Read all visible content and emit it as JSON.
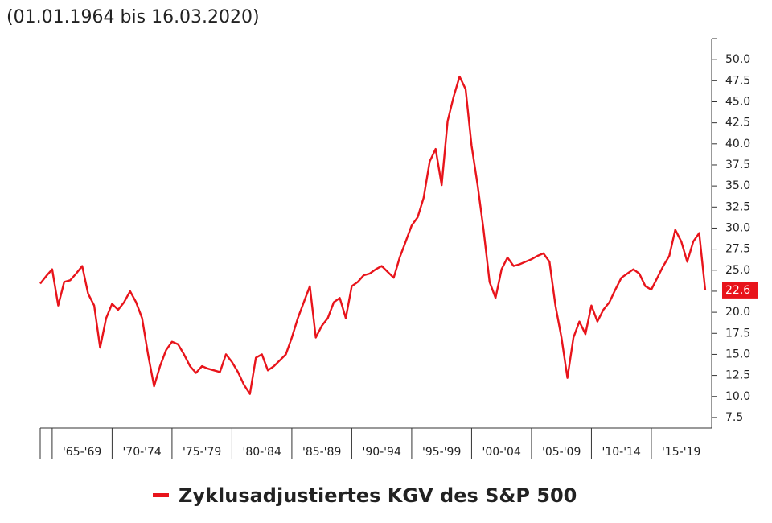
{
  "chart_data": {
    "type": "line",
    "subtitle": "(01.01.1964 bis 16.03.2020)",
    "x_labels": [
      "'65-'69",
      "'70-'74",
      "'75-'79",
      "'80-'84",
      "'85-'89",
      "'90-'94",
      "'95-'99",
      "'00-'04",
      "'05-'09",
      "'10-'14",
      "'15-'19"
    ],
    "series": [
      {
        "name": "Zyklusadjustiertes KGV des S&P 500",
        "color": "#e8141b",
        "values": [
          23.4,
          24.3,
          25.1,
          20.8,
          23.6,
          23.8,
          24.6,
          25.5,
          22.2,
          20.8,
          15.8,
          19.3,
          21,
          20.3,
          21.2,
          22.5,
          21.2,
          19.3,
          15,
          11.2,
          13.6,
          15.5,
          16.5,
          16.2,
          15,
          13.6,
          12.8,
          13.6,
          13.3,
          13.1,
          12.9,
          15,
          14.1,
          12.9,
          11.4,
          10.3,
          14.6,
          15,
          13.1,
          13.6,
          14.3,
          15,
          17,
          19.3,
          21.2,
          23.1,
          17,
          18.4,
          19.3,
          21.2,
          21.7,
          19.3,
          23.1,
          23.6,
          24.4,
          24.6,
          25.1,
          25.5,
          24.8,
          24.1,
          26.5,
          28.4,
          30.3,
          31.3,
          33.6,
          37.9,
          39.4,
          35.1,
          42.7,
          45.6,
          48,
          46.5,
          39.8,
          35.1,
          29.8,
          23.6,
          21.7,
          25.1,
          26.5,
          25.5,
          25.7,
          26,
          26.3,
          26.7,
          27,
          26,
          20.8,
          17,
          12.2,
          17,
          18.9,
          17.4,
          20.8,
          18.9,
          20.3,
          21.2,
          22.7,
          24.1,
          24.6,
          25.1,
          24.6,
          23.1,
          22.7,
          24.1,
          25.5,
          26.7,
          29.8,
          28.4,
          26,
          28.4,
          29.4,
          22.6
        ]
      }
    ],
    "ylim": [
      6.25,
      52.5
    ],
    "yticks": [
      7.5,
      {
        "value": 10,
        "label": "10.0"
      },
      12.5,
      {
        "value": 15,
        "label": "15.0"
      },
      17.5,
      {
        "value": 20,
        "label": "20.0"
      },
      22.5,
      {
        "value": 25,
        "label": "25.0"
      },
      27.5,
      {
        "value": 30,
        "label": "30.0"
      },
      32.5,
      {
        "value": 35,
        "label": "35.0"
      },
      37.5,
      {
        "value": 40,
        "label": "40.0"
      },
      42.5,
      {
        "value": 45,
        "label": "45.0"
      },
      47.5,
      {
        "value": 50,
        "label": "50.0"
      }
    ]
  }
}
